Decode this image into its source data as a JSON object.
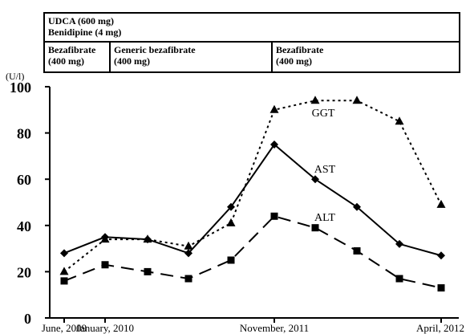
{
  "header": {
    "drugs_line1": "UDCA (600 mg)",
    "drugs_line2": "Benidipine (4 mg)",
    "periods": [
      {
        "name": "Bezafibrate",
        "dose": "(400 mg)"
      },
      {
        "name": "Generic bezafibrate",
        "dose": "(400 mg)"
      },
      {
        "name": "Bezafibrate",
        "dose": "(400 mg)"
      }
    ]
  },
  "chart_data": {
    "type": "line",
    "title": "",
    "ylabel": "(U/l)",
    "ylim": [
      0,
      100
    ],
    "yticks": [
      0,
      20,
      40,
      60,
      80,
      100
    ],
    "x_tick_labels": [
      "June, 2009",
      "January, 2010",
      "November, 2011",
      "April, 2012"
    ],
    "x_tick_index": [
      0,
      1,
      5,
      9
    ],
    "x_points": 10,
    "series": [
      {
        "name": "GGT",
        "marker": "triangle",
        "dash": "dotted",
        "values": [
          20,
          34,
          34,
          31,
          41,
          90,
          94,
          94,
          85,
          49
        ]
      },
      {
        "name": "AST",
        "marker": "diamond",
        "dash": "solid",
        "values": [
          28,
          35,
          34,
          28,
          48,
          75,
          60,
          48,
          32,
          27
        ]
      },
      {
        "name": "ALT",
        "marker": "square",
        "dash": "dashed",
        "values": [
          16,
          23,
          20,
          17,
          25,
          44,
          39,
          29,
          17,
          13
        ]
      }
    ]
  }
}
